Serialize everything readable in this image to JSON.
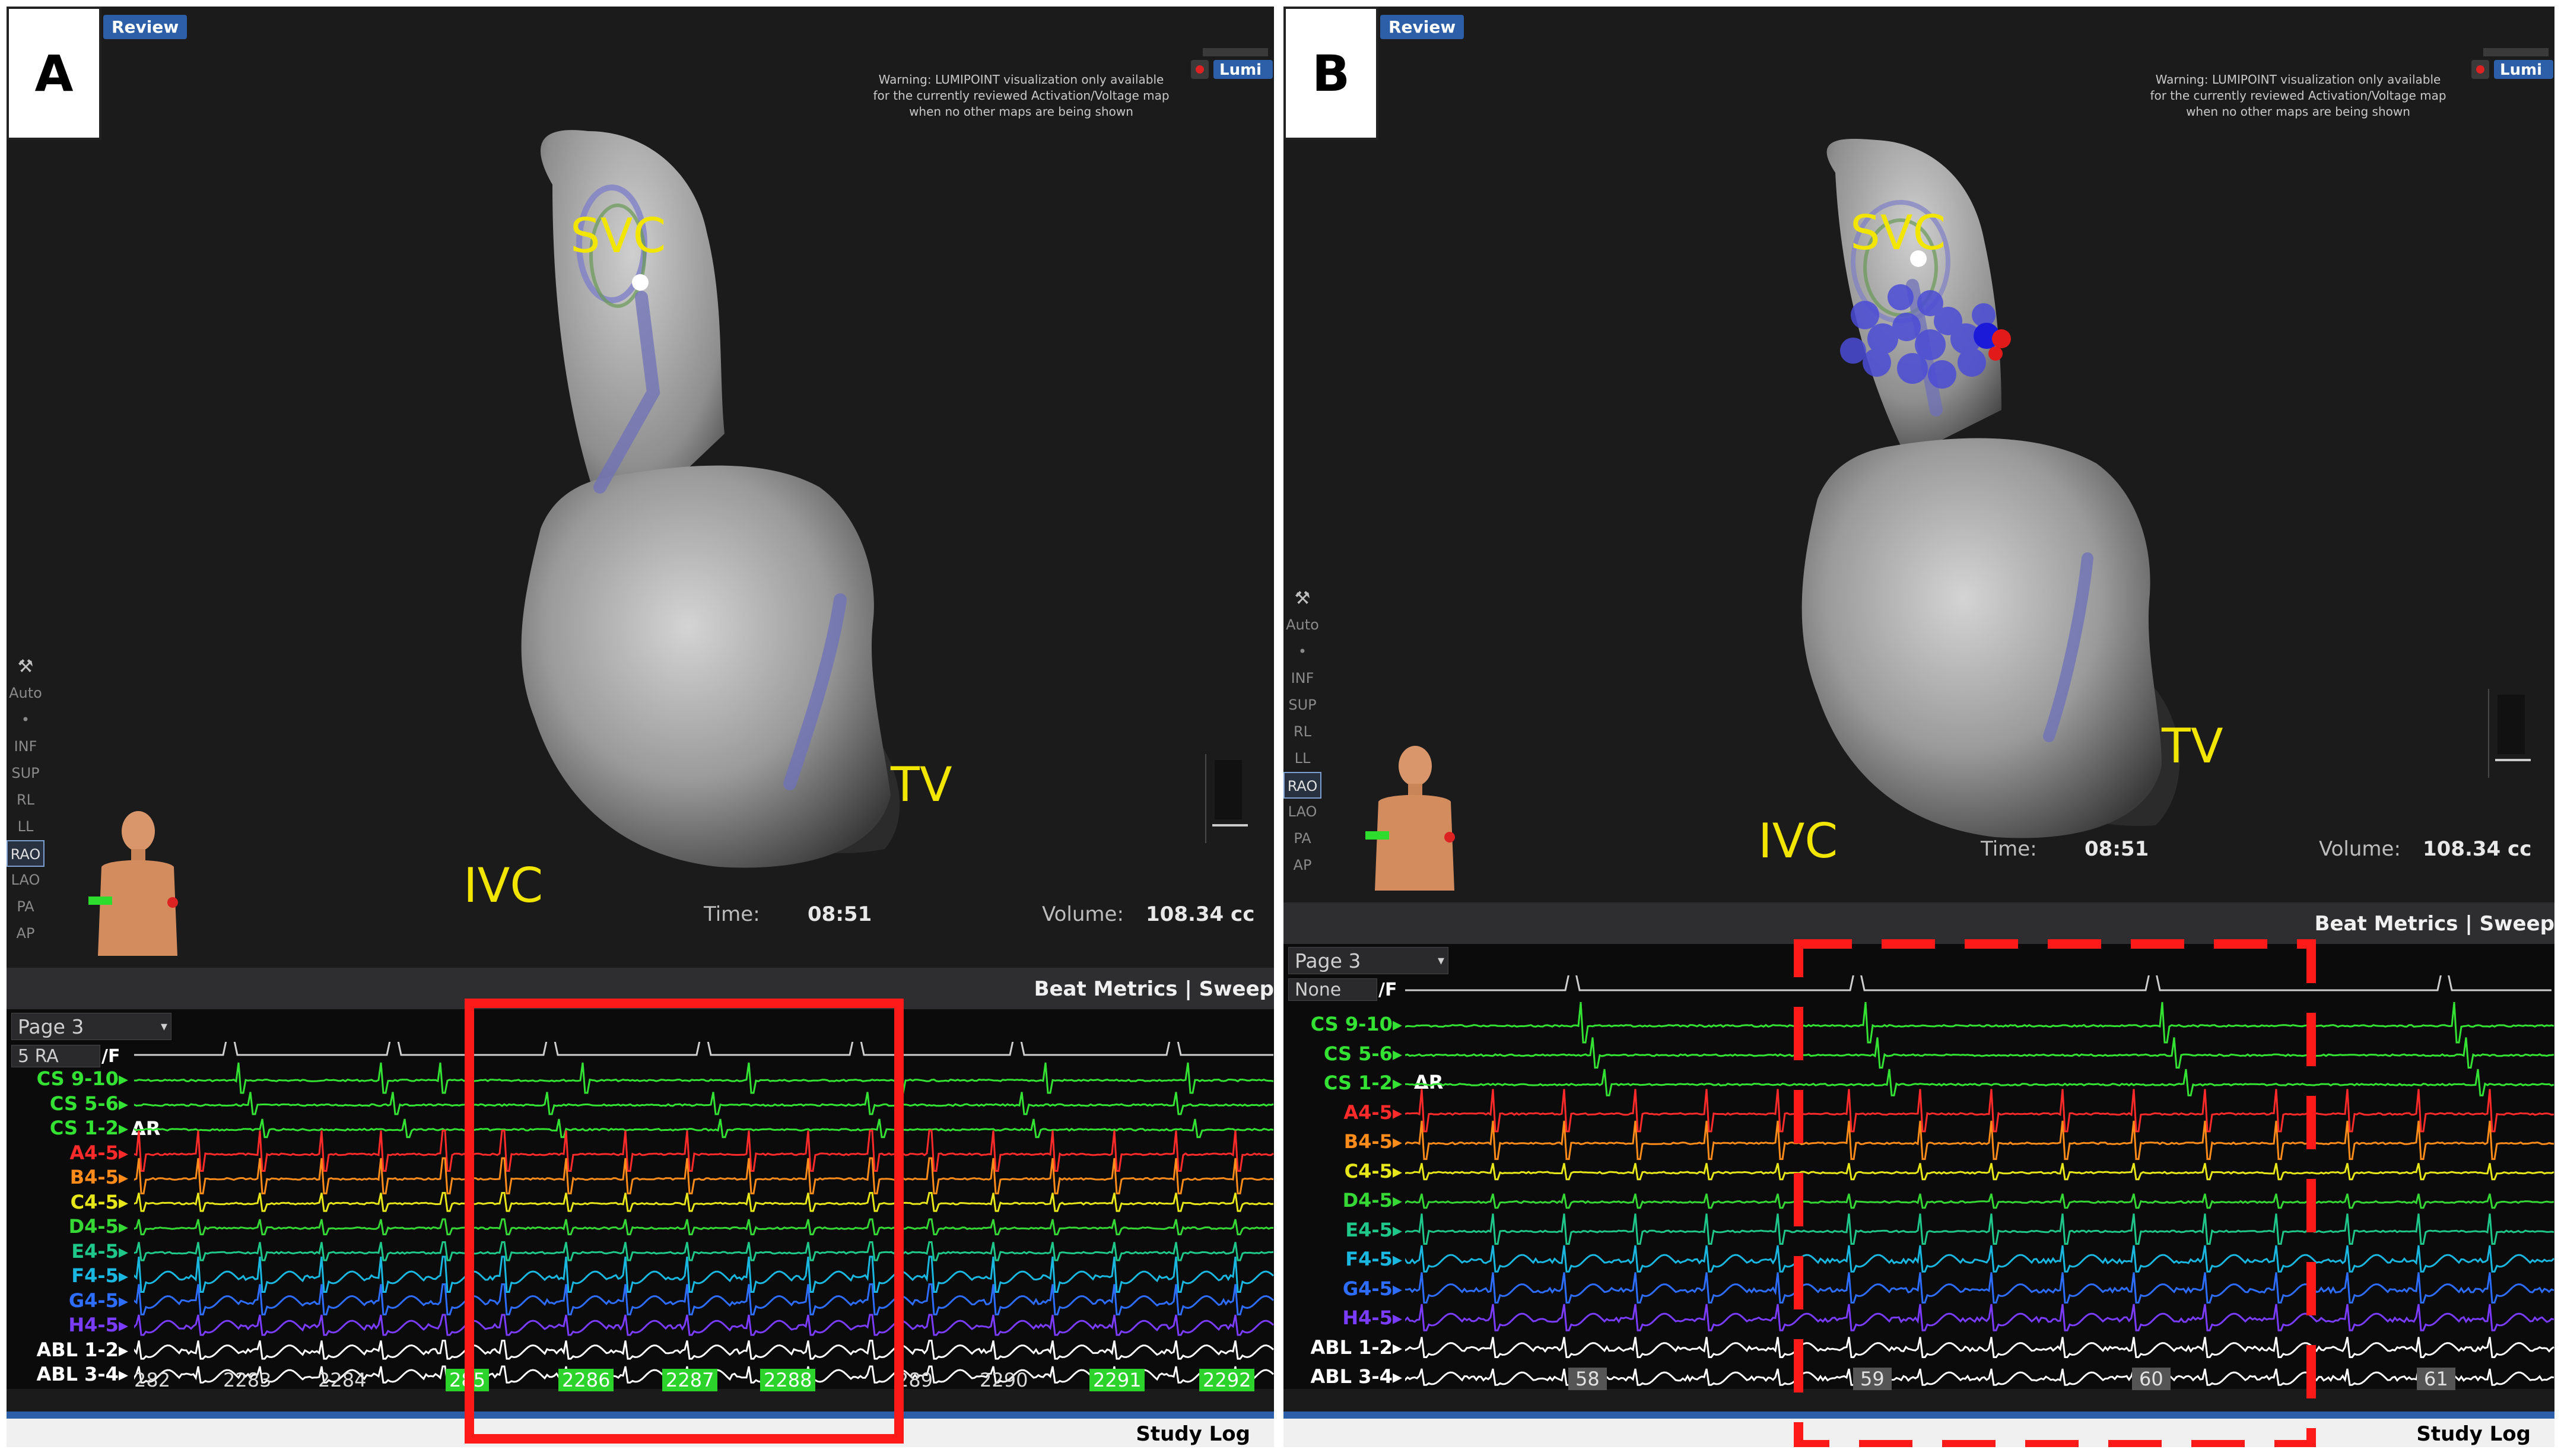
{
  "panels": {
    "a": {
      "letter": "A",
      "review_tab": "Review",
      "warning_lines": [
        "Warning: LUMIPOINT visualization only available",
        "for the currently reviewed Activation/Voltage map",
        "when no other maps are being shown"
      ],
      "labels": {
        "svc": "SVC",
        "tv": "TV",
        "ivc": "IVC"
      },
      "time_label": "Time:",
      "time_value": "08:51",
      "volume_label": "Volume:",
      "volume_value": "108.34 cc",
      "view_buttons": [
        "Auto",
        "INF",
        "SUP",
        "RL",
        "LL",
        "RAO",
        "LAO",
        "PA",
        "AP"
      ],
      "selected_view": "RAO",
      "strip_title": "Beat Metrics | Sweep",
      "page_select": "Page 3",
      "ref_select": "5 RA",
      "ref_suffix": "/F",
      "delta_label": "ΔR",
      "channels": [
        {
          "name": "CS 9-10",
          "color": "#33e233"
        },
        {
          "name": "CS 5-6",
          "color": "#33e233"
        },
        {
          "name": "CS 1-2",
          "color": "#33e233"
        },
        {
          "name": "A4-5",
          "color": "#ff2a2a"
        },
        {
          "name": "B4-5",
          "color": "#ff8c1a"
        },
        {
          "name": "C4-5",
          "color": "#e6e61a"
        },
        {
          "name": "D4-5",
          "color": "#35d835"
        },
        {
          "name": "E4-5",
          "color": "#20c78a"
        },
        {
          "name": "F4-5",
          "color": "#1ab8e0"
        },
        {
          "name": "G4-5",
          "color": "#2d6dff"
        },
        {
          "name": "H4-5",
          "color": "#7a3cff"
        },
        {
          "name": "ABL 1-2",
          "color": "#ffffff"
        },
        {
          "name": "ABL 3-4",
          "color": "#ffffff"
        }
      ],
      "beat_numbers": [
        "282",
        "2283",
        "2284",
        "285",
        "2286",
        "2287",
        "2288",
        "289",
        "2290",
        "2291",
        "2292"
      ],
      "highlighted_beats": [
        "285",
        "2286",
        "2287",
        "2288",
        "2291",
        "2292"
      ],
      "study_log": "Study Log",
      "highlight_style": "solid-red-box"
    },
    "b": {
      "letter": "B",
      "review_tab": "Review",
      "warning_lines": [
        "Warning: LUMIPOINT visualization only available",
        "for the currently reviewed Activation/Voltage map",
        "when no other maps are being shown"
      ],
      "labels": {
        "svc": "SVC",
        "tv": "TV",
        "ivc": "IVC"
      },
      "time_label": "Time:",
      "time_value": "08:51",
      "volume_label": "Volume:",
      "volume_value": "108.34 cc",
      "view_buttons": [
        "Auto",
        "INF",
        "SUP",
        "RL",
        "LL",
        "RAO",
        "LAO",
        "PA",
        "AP"
      ],
      "selected_view": "RAO",
      "strip_title": "Beat Metrics | Sweep",
      "page_select": "Page 3",
      "ref_select": "None",
      "ref_suffix": "/F",
      "delta_label": "ΔR",
      "channels": [
        {
          "name": "CS 9-10",
          "color": "#33e233"
        },
        {
          "name": "CS 5-6",
          "color": "#33e233"
        },
        {
          "name": "CS 1-2",
          "color": "#33e233"
        },
        {
          "name": "A4-5",
          "color": "#ff2a2a"
        },
        {
          "name": "B4-5",
          "color": "#ff8c1a"
        },
        {
          "name": "C4-5",
          "color": "#e6e61a"
        },
        {
          "name": "D4-5",
          "color": "#35d835"
        },
        {
          "name": "E4-5",
          "color": "#20c78a"
        },
        {
          "name": "F4-5",
          "color": "#1ab8e0"
        },
        {
          "name": "G4-5",
          "color": "#2d6dff"
        },
        {
          "name": "H4-5",
          "color": "#7a3cff"
        },
        {
          "name": "ABL 1-2",
          "color": "#ffffff"
        },
        {
          "name": "ABL 3-4",
          "color": "#ffffff"
        }
      ],
      "beat_numbers": [
        "58",
        "59",
        "60",
        "61"
      ],
      "study_log": "Study Log",
      "highlight_style": "dashed-red-box"
    }
  },
  "colors": {
    "highlight_red": "#ff1a1a",
    "label_yellow": "#f2e600",
    "panel_bg": "#1b1b1c"
  }
}
